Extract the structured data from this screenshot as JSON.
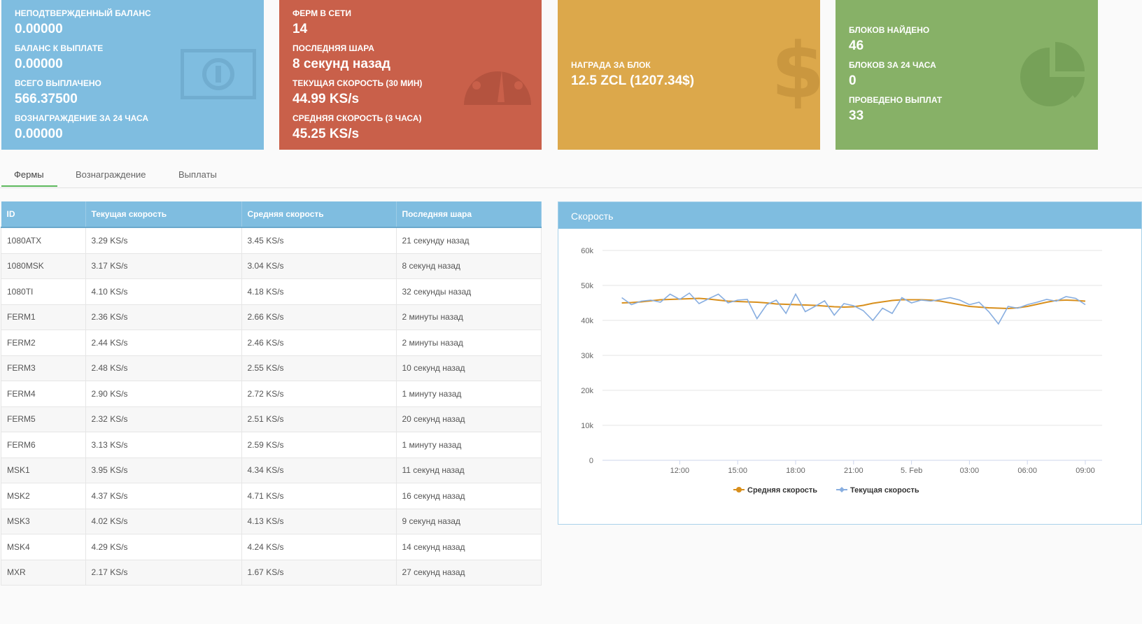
{
  "cards": {
    "balance": {
      "items": [
        {
          "label": "НЕПОДТВЕРЖДЕННЫЙ БАЛАНС",
          "value": "0.00000"
        },
        {
          "label": "БАЛАНС К ВЫПЛАТЕ",
          "value": "0.00000"
        },
        {
          "label": "ВСЕГО ВЫПЛАЧЕНО",
          "value": "566.37500"
        },
        {
          "label": "ВОЗНАГРАЖДЕНИЕ ЗА 24 ЧАСА",
          "value": "0.00000"
        }
      ],
      "color": "#7fbde0",
      "icon": "money-bill-icon"
    },
    "farms": {
      "items": [
        {
          "label": "ФЕРМ В СЕТИ",
          "value": "14"
        },
        {
          "label": "ПОСЛЕДНЯЯ ШАРА",
          "value": "8 секунд назад"
        },
        {
          "label": "ТЕКУЩАЯ СКОРОСТЬ (30 мин)",
          "value": "44.99 KS/s"
        },
        {
          "label": "СРЕДНЯЯ СКОРОСТЬ (3 часа)",
          "value": "45.25 KS/s"
        }
      ],
      "color": "#c9604a",
      "icon": "speedometer-icon"
    },
    "reward": {
      "items": [
        {
          "label": "НАГРАДА ЗА БЛОК",
          "value": "12.5 ZCL (1207.34$)"
        }
      ],
      "color": "#dca84b",
      "icon": "dollar-icon"
    },
    "blocks": {
      "items": [
        {
          "label": "БЛОКОВ НАЙДЕНО",
          "value": "46"
        },
        {
          "label": "БЛОКОВ ЗА 24 ЧАСА",
          "value": "0"
        },
        {
          "label": "ПРОВЕДЕНО ВЫПЛАТ",
          "value": "33"
        }
      ],
      "color": "#87b167",
      "icon": "pie-chart-icon"
    }
  },
  "tabs": [
    "Фермы",
    "Вознаграждение",
    "Выплаты"
  ],
  "table": {
    "headers": [
      "ID",
      "Текущая скорость",
      "Средняя скорость",
      "Последняя шара"
    ],
    "rows": [
      [
        "1080ATX",
        "3.29 KS/s",
        "3.45 KS/s",
        "21 секунду назад"
      ],
      [
        "1080MSK",
        "3.17 KS/s",
        "3.04 KS/s",
        "8 секунд назад"
      ],
      [
        "1080TI",
        "4.10 KS/s",
        "4.18 KS/s",
        "32 секунды назад"
      ],
      [
        "FERM1",
        "2.36 KS/s",
        "2.66 KS/s",
        "2 минуты назад"
      ],
      [
        "FERM2",
        "2.44 KS/s",
        "2.46 KS/s",
        "2 минуты назад"
      ],
      [
        "FERM3",
        "2.48 KS/s",
        "2.55 KS/s",
        "10 секунд назад"
      ],
      [
        "FERM4",
        "2.90 KS/s",
        "2.72 KS/s",
        "1 минуту назад"
      ],
      [
        "FERM5",
        "2.32 KS/s",
        "2.51 KS/s",
        "20 секунд назад"
      ],
      [
        "FERM6",
        "3.13 KS/s",
        "2.59 KS/s",
        "1 минуту назад"
      ],
      [
        "MSK1",
        "3.95 KS/s",
        "4.34 KS/s",
        "11 секунд назад"
      ],
      [
        "MSK2",
        "4.37 KS/s",
        "4.71 KS/s",
        "16 секунд назад"
      ],
      [
        "MSK3",
        "4.02 KS/s",
        "4.13 KS/s",
        "9 секунд назад"
      ],
      [
        "MSK4",
        "4.29 KS/s",
        "4.24 KS/s",
        "14 секунд назад"
      ],
      [
        "MXR",
        "2.17 KS/s",
        "1.67 KS/s",
        "27 секунд назад"
      ]
    ]
  },
  "chart_panel": {
    "title": "Скорость"
  },
  "chart_data": {
    "type": "line",
    "title": "",
    "xlabel": "",
    "ylabel": "",
    "ylim": [
      0,
      60000
    ],
    "yticks": [
      "0",
      "10k",
      "20k",
      "30k",
      "40k",
      "50k",
      "60k"
    ],
    "xticks": [
      "12:00",
      "15:00",
      "18:00",
      "21:00",
      "5. Feb",
      "03:00",
      "06:00",
      "09:00"
    ],
    "grid": true,
    "legend_position": "bottom",
    "x_hours": [
      9.0,
      9.5,
      10.0,
      10.5,
      11.0,
      11.5,
      12.0,
      12.5,
      13.0,
      13.5,
      14.0,
      14.5,
      15.0,
      15.5,
      16.0,
      16.5,
      17.0,
      17.5,
      18.0,
      18.5,
      19.0,
      19.5,
      20.0,
      20.5,
      21.0,
      21.5,
      22.0,
      22.5,
      23.0,
      23.5,
      24.0,
      24.5,
      25.0,
      25.5,
      26.0,
      26.5,
      27.0,
      27.5,
      28.0,
      28.5,
      29.0,
      29.5,
      30.0,
      30.5,
      31.0,
      31.5,
      32.0,
      32.5,
      33.0
    ],
    "series": [
      {
        "name": "Средняя скорость",
        "color": "#d88f1c",
        "values": [
          45000,
          45100,
          45300,
          45600,
          45900,
          46000,
          46100,
          46200,
          46300,
          46100,
          45800,
          45500,
          45400,
          45300,
          45200,
          45000,
          44700,
          44600,
          44500,
          44400,
          44300,
          44100,
          43900,
          43800,
          43900,
          44300,
          44900,
          45300,
          45700,
          45900,
          45900,
          45900,
          45800,
          45500,
          45000,
          44500,
          44000,
          43800,
          43600,
          43500,
          43400,
          43600,
          44000,
          44600,
          45200,
          45700,
          45800,
          45700,
          45500
        ]
      },
      {
        "name": "Текущая скорость",
        "color": "#88aee0",
        "values": [
          46500,
          44500,
          45500,
          45800,
          45200,
          47500,
          46000,
          47800,
          44800,
          46200,
          47500,
          45000,
          45800,
          46000,
          40500,
          44500,
          45800,
          42000,
          47500,
          42500,
          44000,
          45600,
          41500,
          44800,
          44200,
          42800,
          40000,
          43500,
          42000,
          46500,
          45000,
          45800,
          45500,
          46000,
          46500,
          45800,
          44500,
          45200,
          42500,
          39000,
          44000,
          43500,
          44500,
          45200,
          46000,
          45500,
          46800,
          46300,
          44500
        ]
      }
    ]
  }
}
